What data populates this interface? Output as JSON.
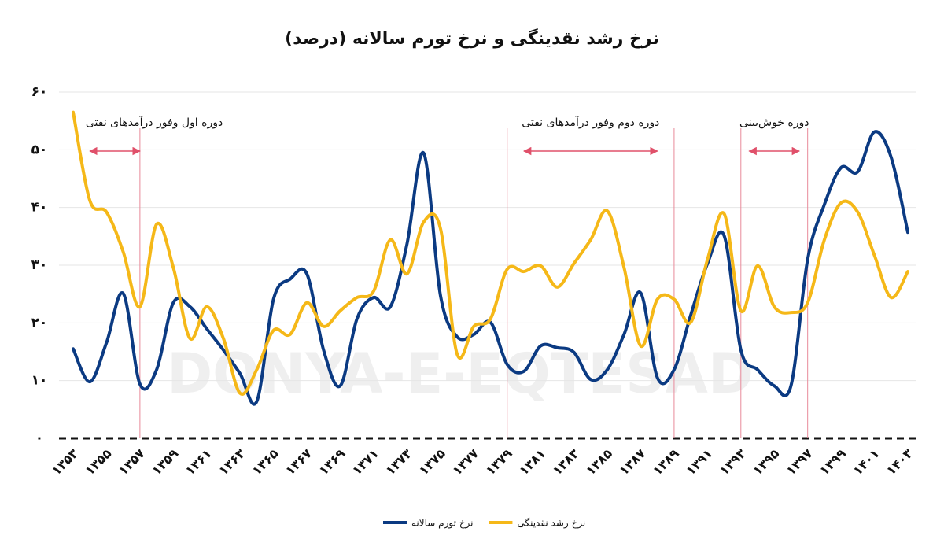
{
  "chart_data": {
    "type": "line",
    "title": "نرخ رشد نقدینگی و نرخ تورم سالانه (درصد)",
    "watermark": "DONYA-E-EQTESAD",
    "x": [
      1353,
      1354,
      1355,
      1356,
      1357,
      1358,
      1359,
      1360,
      1361,
      1362,
      1363,
      1364,
      1365,
      1366,
      1367,
      1368,
      1369,
      1370,
      1371,
      1372,
      1373,
      1374,
      1375,
      1376,
      1377,
      1378,
      1379,
      1380,
      1381,
      1382,
      1383,
      1384,
      1385,
      1386,
      1387,
      1388,
      1389,
      1390,
      1391,
      1392,
      1393,
      1394,
      1395,
      1396,
      1397,
      1398,
      1399,
      1400,
      1401,
      1402,
      1403
    ],
    "xlim": [
      1353,
      1403
    ],
    "xticks": [
      {
        "value": 1353,
        "label": "۱۳۵۳"
      },
      {
        "value": 1355,
        "label": "۱۳۵۵"
      },
      {
        "value": 1357,
        "label": "۱۳۵۷"
      },
      {
        "value": 1359,
        "label": "۱۳۵۹"
      },
      {
        "value": 1361,
        "label": "۱۳۶۱"
      },
      {
        "value": 1363,
        "label": "۱۳۶۳"
      },
      {
        "value": 1365,
        "label": "۱۳۶۵"
      },
      {
        "value": 1367,
        "label": "۱۳۶۷"
      },
      {
        "value": 1369,
        "label": "۱۳۶۹"
      },
      {
        "value": 1371,
        "label": "۱۳۷۱"
      },
      {
        "value": 1373,
        "label": "۱۳۷۳"
      },
      {
        "value": 1375,
        "label": "۱۳۷۵"
      },
      {
        "value": 1377,
        "label": "۱۳۷۷"
      },
      {
        "value": 1379,
        "label": "۱۳۷۹"
      },
      {
        "value": 1381,
        "label": "۱۳۸۱"
      },
      {
        "value": 1383,
        "label": "۱۳۸۳"
      },
      {
        "value": 1385,
        "label": "۱۳۸۵"
      },
      {
        "value": 1387,
        "label": "۱۳۸۷"
      },
      {
        "value": 1389,
        "label": "۱۳۸۹"
      },
      {
        "value": 1391,
        "label": "۱۳۹۱"
      },
      {
        "value": 1393,
        "label": "۱۳۹۳"
      },
      {
        "value": 1395,
        "label": "۱۳۹۵"
      },
      {
        "value": 1397,
        "label": "۱۳۹۷"
      },
      {
        "value": 1399,
        "label": "۱۳۹۹"
      },
      {
        "value": 1401,
        "label": "۱۴۰۱"
      },
      {
        "value": 1403,
        "label": "۱۴۰۳"
      }
    ],
    "ylim": [
      0,
      60
    ],
    "yticks": [
      {
        "value": 0,
        "label": "۰"
      },
      {
        "value": 10,
        "label": "۱۰"
      },
      {
        "value": 20,
        "label": "۲۰"
      },
      {
        "value": 30,
        "label": "۳۰"
      },
      {
        "value": 40,
        "label": "۴۰"
      },
      {
        "value": 50,
        "label": "۵۰"
      },
      {
        "value": 60,
        "label": "۶۰"
      }
    ],
    "grid": true,
    "legend": "bottom",
    "series": [
      {
        "name": "نرخ تورم سالانه",
        "color": "#0b3a82",
        "values": [
          15.5,
          9.8,
          16.6,
          25.1,
          9.4,
          11.9,
          23.5,
          22.8,
          19,
          15.3,
          11.2,
          6.4,
          24.1,
          27.6,
          28.5,
          15.3,
          9.1,
          20.7,
          24.4,
          22.8,
          33.7,
          49.4,
          24.8,
          17.6,
          18,
          20.1,
          12.8,
          11.6,
          16,
          15.7,
          14.9,
          10.2,
          11.9,
          18,
          25.2,
          10.5,
          11.9,
          21.4,
          30.3,
          35.1,
          15.3,
          11.9,
          9.1,
          9.1,
          31,
          40.5,
          46.9,
          46.2,
          53.1,
          48.7,
          35.7
        ]
      },
      {
        "name": "نرخ رشد نقدینگی",
        "color": "#f5b818",
        "values": [
          56.5,
          41.2,
          39.2,
          32.3,
          22.8,
          37.1,
          29.6,
          17.3,
          22.8,
          17.3,
          7.8,
          11.9,
          18.7,
          18,
          23.5,
          19.4,
          22.1,
          24.4,
          25.5,
          34.4,
          28.5,
          37.5,
          36.4,
          14.6,
          19.4,
          20.7,
          29.3,
          28.9,
          29.9,
          26.2,
          30.3,
          34.4,
          39.4,
          29.6,
          16,
          24.1,
          24.1,
          20.1,
          31,
          38.9,
          22.1,
          29.9,
          22.8,
          21.8,
          23.5,
          34.4,
          40.8,
          39.2,
          31.7,
          24.4,
          28.9
        ]
      }
    ],
    "periods": [
      {
        "label": "دوره اول وفور درآمدهای نفتی",
        "arrow": [
          1354,
          1357
        ],
        "lines": [
          1357
        ]
      },
      {
        "label": "دوره دوم وفور درآمدهای نفتی",
        "arrow": [
          1380,
          1388
        ],
        "lines": [
          1379,
          1389
        ]
      },
      {
        "label": "دوره خوش‌بینی",
        "arrow": [
          1393.5,
          1396.5
        ],
        "lines": [
          1393,
          1397
        ]
      }
    ]
  }
}
